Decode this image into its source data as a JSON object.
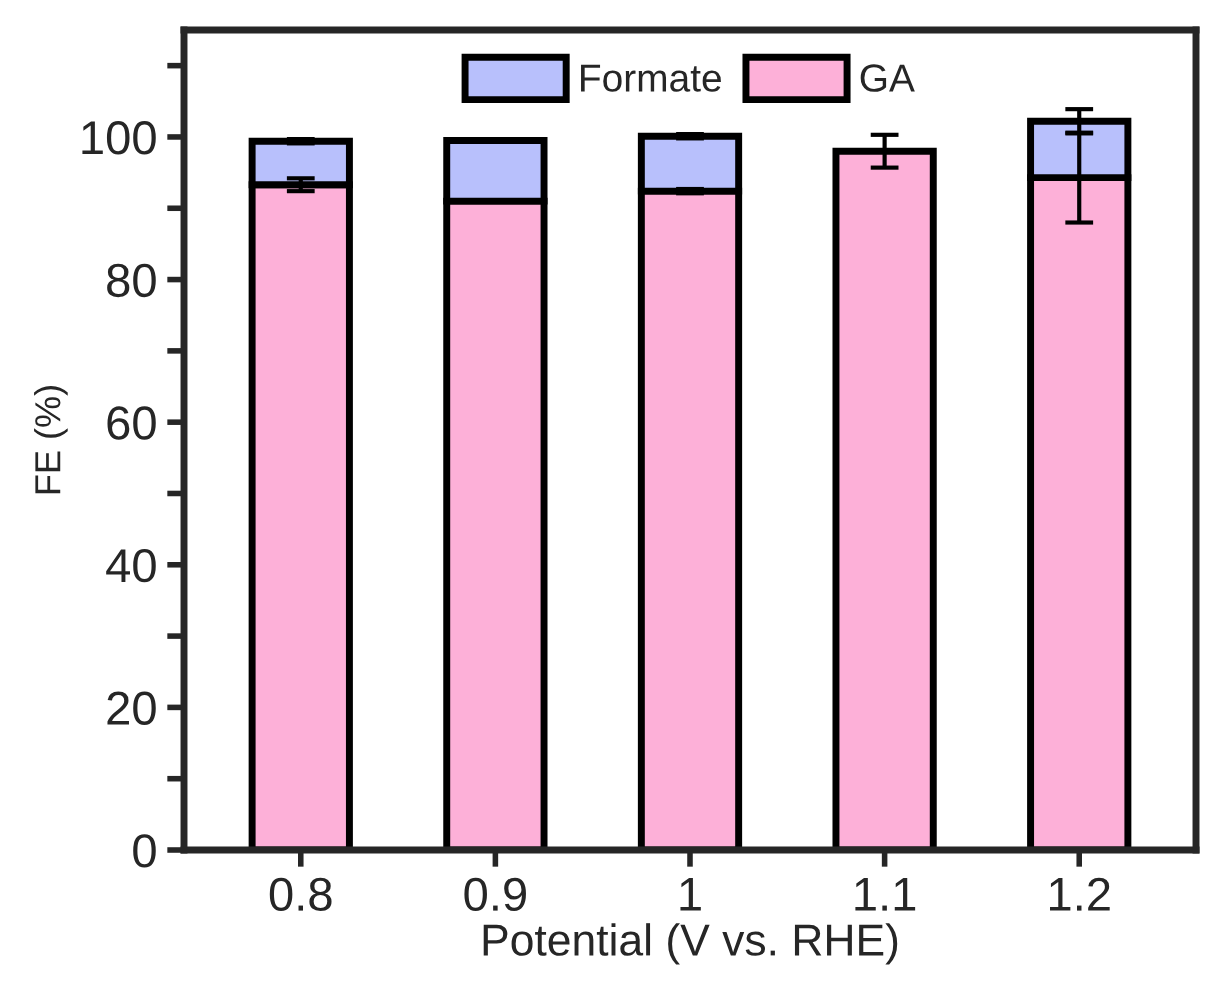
{
  "chart_data": {
    "type": "bar",
    "stacked": true,
    "xlabel": "Potential (V vs. RHE)",
    "ylabel": "FE (%)",
    "categories": [
      "0.8",
      "0.9",
      "1",
      "1.1",
      "1.2"
    ],
    "series": [
      {
        "name": "GA",
        "color": "#fdb0d8",
        "values": [
          93.3,
          91.0,
          92.4,
          98.0,
          94.3
        ],
        "errors": [
          0.9,
          null,
          0.3,
          2.3,
          6.3
        ]
      },
      {
        "name": "Formate",
        "color": "#b8c0fc",
        "values": [
          6.1,
          8.5,
          7.7,
          null,
          7.9
        ],
        "errors": [
          0.3,
          null,
          0.3,
          null,
          1.7
        ]
      }
    ],
    "ylim": [
      0,
      115
    ],
    "yticks": [
      0,
      {
        "value": 10,
        "label": null
      },
      20,
      {
        "value": 30,
        "label": null
      },
      40,
      {
        "value": 50,
        "label": null
      },
      60,
      {
        "value": 70,
        "label": null
      },
      80,
      {
        "value": 90,
        "label": null
      },
      100,
      {
        "value": 110,
        "label": null
      }
    ],
    "grid": false,
    "legend": "top"
  }
}
